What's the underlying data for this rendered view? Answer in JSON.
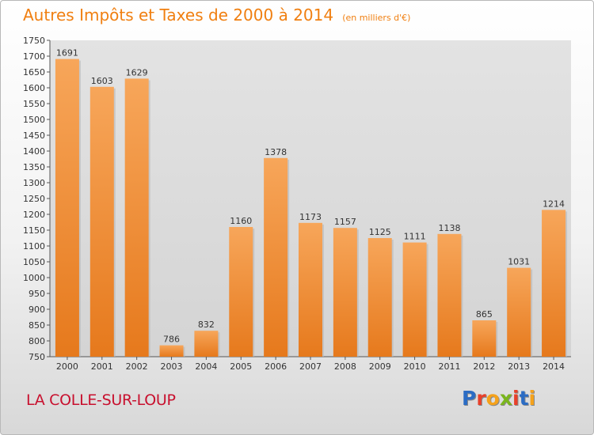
{
  "title": "Autres Impôts et Taxes de 2000 à 2014",
  "unit_note": "(en milliers d'€)",
  "commune": "LA COLLE-SUR-LOUP",
  "logo": {
    "text": "Proxiti",
    "letter_colors": [
      "#2b6cc4",
      "#e8402a",
      "#f5a21b",
      "#7ab51d",
      "#e8402a",
      "#2b6cc4",
      "#f5a21b"
    ]
  },
  "colors": {
    "bar_top": "#f7a65a",
    "bar_bottom": "#e6791c",
    "title": "#f07f10",
    "commune": "#c8102e"
  },
  "chart_data": {
    "type": "bar",
    "title": "Autres Impôts et Taxes de 2000 à 2014",
    "subtitle": "(en milliers d'€)",
    "categories": [
      "2000",
      "2001",
      "2002",
      "2003",
      "2004",
      "2005",
      "2006",
      "2007",
      "2008",
      "2009",
      "2010",
      "2011",
      "2012",
      "2013",
      "2014"
    ],
    "values": [
      1691,
      1603,
      1629,
      786,
      832,
      1160,
      1378,
      1173,
      1157,
      1125,
      1111,
      1138,
      865,
      1031,
      1214
    ],
    "ylim": [
      750,
      1750
    ],
    "yticks": [
      750,
      800,
      850,
      900,
      950,
      1000,
      1050,
      1100,
      1150,
      1200,
      1250,
      1300,
      1350,
      1400,
      1450,
      1500,
      1550,
      1600,
      1650,
      1700,
      1750
    ],
    "grid": false,
    "legend": "none"
  }
}
